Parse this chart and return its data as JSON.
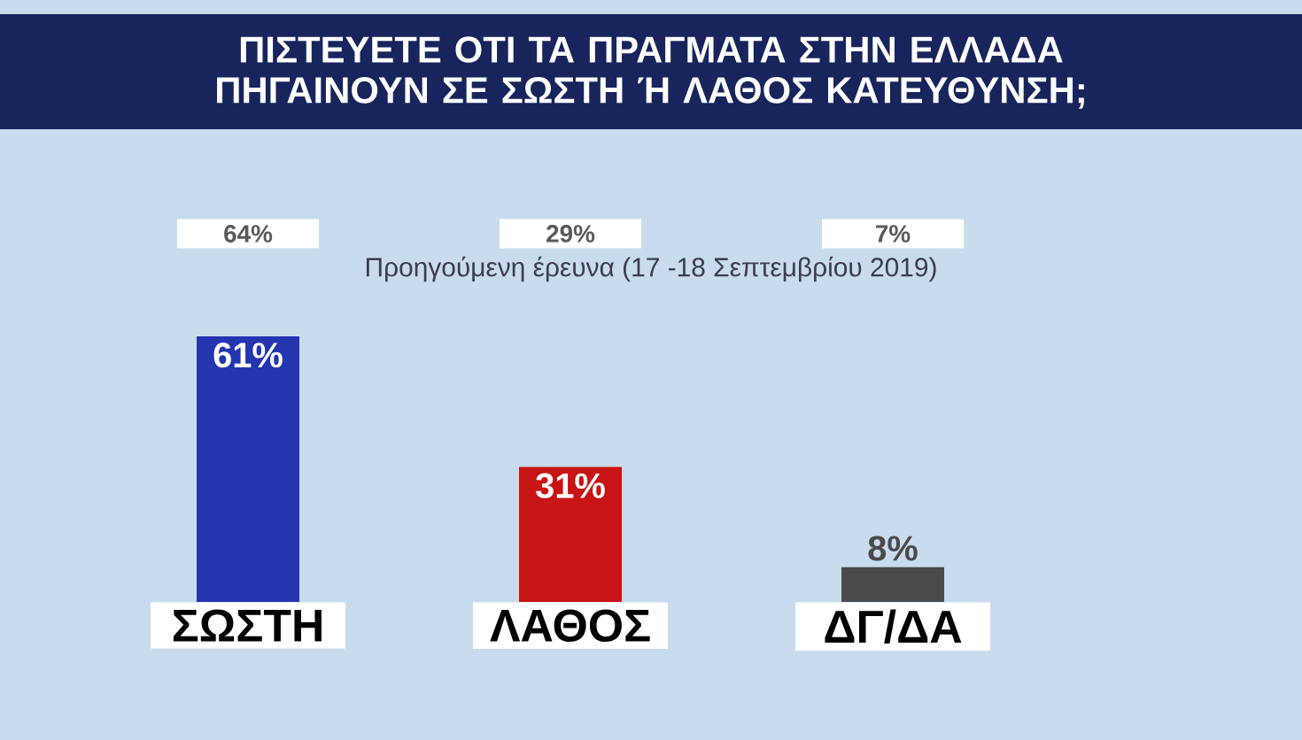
{
  "chart_data": {
    "type": "bar",
    "title": "ΠΙΣΤΕΥΕΤΕ ΟΤΙ ΤΑ ΠΡΑΓΜΑΤΑ ΣΤΗΝ ΕΛΛΑΔΑ ΠΗΓΑΙΝΟΥΝ ΣΕ ΣΩΣΤΗ Ή ΛΑΘΟΣ ΚΑΤΕΥΘΥΝΣΗ;",
    "subtitle": "Προηγούμενη έρευνα (17 -18 Σεπτεμβρίου 2019)",
    "annotations": [
      "64%",
      "29%",
      "7%"
    ],
    "categories": [
      "ΣΩΣΤΗ",
      "ΛΑΘΟΣ",
      "ΔΓ/ΔΑ"
    ],
    "values": [
      61,
      31,
      8
    ],
    "colors": [
      "#2435b0",
      "#c81414",
      "#4a4a4a"
    ],
    "value_labels": [
      "61%",
      "31%",
      "8%"
    ]
  }
}
